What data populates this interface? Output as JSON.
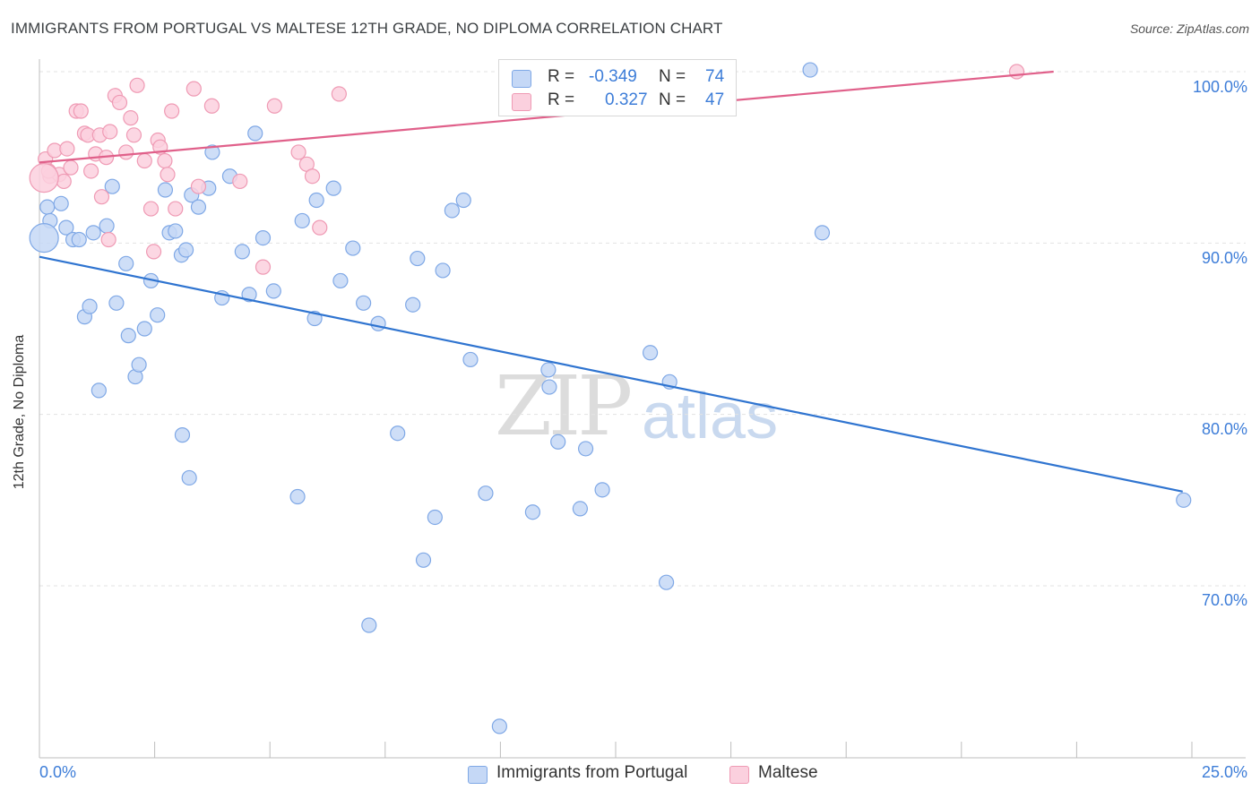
{
  "title": "IMMIGRANTS FROM PORTUGAL VS MALTESE 12TH GRADE, NO DIPLOMA CORRELATION CHART",
  "source": "Source: ZipAtlas.com",
  "watermark": {
    "zip": "ZIP",
    "atlas": "atlas"
  },
  "legend": {
    "r_label": "R =",
    "n_label": "N =",
    "rows": [
      {
        "series": "Immigrants from Portugal",
        "r": "-0.349",
        "n": "74",
        "color": "#7fa8e6",
        "fill": "#c5d8f6"
      },
      {
        "series": "Maltese",
        "r": "0.327",
        "n": "47",
        "color": "#ef9ab4",
        "fill": "#fbd0de"
      }
    ]
  },
  "colors": {
    "blue": "#3d7dd8",
    "blue_line": "#2f74d0",
    "pink_line": "#e0608a",
    "blue_fill": "#c5d8f6",
    "pink_fill": "#fbd0de"
  },
  "chart_data": {
    "type": "scatter",
    "title": "IMMIGRANTS FROM PORTUGAL VS MALTESE 12TH GRADE, NO DIPLOMA CORRELATION CHART",
    "xlabel": "",
    "ylabel": "12th Grade, No Diploma",
    "xlim": [
      0,
      25
    ],
    "ylim": [
      61.5,
      102.5
    ],
    "x_tick_labels": [
      "0.0%",
      "25.0%"
    ],
    "y_ticks": [
      70,
      80,
      90,
      100
    ],
    "y_tick_labels": [
      "70.0%",
      "80.0%",
      "90.0%",
      "100.0%"
    ],
    "grid": true,
    "legend_position": "bottom",
    "series": [
      {
        "name": "Immigrants from Portugal",
        "color": "#3d7dd8",
        "points": [
          [
            0.17,
            92.1
          ],
          [
            0.23,
            91.3
          ],
          [
            0.47,
            92.3
          ],
          [
            0.58,
            90.9
          ],
          [
            0.73,
            90.2
          ],
          [
            0.86,
            90.2
          ],
          [
            0.98,
            85.7
          ],
          [
            1.09,
            86.3
          ],
          [
            1.17,
            90.6
          ],
          [
            1.46,
            91.0
          ],
          [
            1.58,
            93.3
          ],
          [
            1.67,
            86.5
          ],
          [
            1.88,
            88.8
          ],
          [
            1.93,
            84.6
          ],
          [
            2.08,
            82.2
          ],
          [
            2.16,
            82.9
          ],
          [
            2.28,
            85.0
          ],
          [
            2.42,
            87.8
          ],
          [
            2.56,
            85.8
          ],
          [
            2.73,
            93.1
          ],
          [
            2.82,
            90.6
          ],
          [
            2.95,
            90.7
          ],
          [
            3.08,
            89.3
          ],
          [
            3.18,
            89.6
          ],
          [
            3.3,
            92.8
          ],
          [
            3.45,
            92.1
          ],
          [
            3.67,
            93.2
          ],
          [
            3.75,
            95.3
          ],
          [
            3.96,
            86.8
          ],
          [
            4.13,
            93.9
          ],
          [
            4.4,
            89.5
          ],
          [
            4.55,
            87.0
          ],
          [
            4.68,
            96.4
          ],
          [
            4.85,
            90.3
          ],
          [
            5.08,
            87.2
          ],
          [
            5.7,
            91.3
          ],
          [
            5.97,
            85.6
          ],
          [
            6.01,
            92.5
          ],
          [
            6.38,
            93.2
          ],
          [
            6.53,
            87.8
          ],
          [
            6.8,
            89.7
          ],
          [
            7.03,
            86.5
          ],
          [
            7.35,
            85.3
          ],
          [
            7.77,
            78.9
          ],
          [
            8.1,
            86.4
          ],
          [
            8.2,
            89.1
          ],
          [
            8.33,
            71.5
          ],
          [
            8.58,
            74.0
          ],
          [
            8.75,
            88.4
          ],
          [
            8.95,
            91.9
          ],
          [
            9.2,
            92.5
          ],
          [
            9.35,
            83.2
          ],
          [
            9.68,
            75.4
          ],
          [
            1.29,
            81.4
          ],
          [
            3.1,
            78.8
          ],
          [
            3.25,
            76.3
          ],
          [
            5.6,
            75.2
          ],
          [
            10.7,
            74.3
          ],
          [
            11.04,
            82.6
          ],
          [
            11.06,
            81.6
          ],
          [
            11.25,
            78.4
          ],
          [
            11.73,
            74.5
          ],
          [
            11.85,
            78.0
          ],
          [
            12.21,
            75.6
          ],
          [
            13.25,
            83.6
          ],
          [
            13.6,
            70.2
          ],
          [
            13.67,
            81.9
          ],
          [
            16.72,
            100.1
          ],
          [
            16.98,
            90.6
          ],
          [
            24.82,
            75.0
          ],
          [
            9.98,
            61.8
          ],
          [
            7.15,
            67.7
          ],
          [
            13.9,
            100.1
          ],
          [
            0.1,
            90.3
          ]
        ],
        "trend": {
          "x": [
            0,
            24.8
          ],
          "y": [
            89.2,
            75.5
          ]
        }
      },
      {
        "name": "Maltese",
        "color": "#ef9ab4",
        "points": [
          [
            0.13,
            94.9
          ],
          [
            0.23,
            93.9
          ],
          [
            0.33,
            95.4
          ],
          [
            0.43,
            94.0
          ],
          [
            0.53,
            93.6
          ],
          [
            0.6,
            95.5
          ],
          [
            0.68,
            94.4
          ],
          [
            0.8,
            97.7
          ],
          [
            0.9,
            97.7
          ],
          [
            0.98,
            96.4
          ],
          [
            1.05,
            96.3
          ],
          [
            1.12,
            94.2
          ],
          [
            1.22,
            95.2
          ],
          [
            1.31,
            96.3
          ],
          [
            1.35,
            92.7
          ],
          [
            1.45,
            95.0
          ],
          [
            1.53,
            96.5
          ],
          [
            1.64,
            98.6
          ],
          [
            1.74,
            98.2
          ],
          [
            1.88,
            95.3
          ],
          [
            1.98,
            97.3
          ],
          [
            2.05,
            96.3
          ],
          [
            2.12,
            99.2
          ],
          [
            2.28,
            94.8
          ],
          [
            2.42,
            92.0
          ],
          [
            2.48,
            89.5
          ],
          [
            2.57,
            96.0
          ],
          [
            2.62,
            95.6
          ],
          [
            2.72,
            94.8
          ],
          [
            2.78,
            94.0
          ],
          [
            2.87,
            97.7
          ],
          [
            2.95,
            92.0
          ],
          [
            3.35,
            99.0
          ],
          [
            3.45,
            93.3
          ],
          [
            3.74,
            98.0
          ],
          [
            4.35,
            93.6
          ],
          [
            4.85,
            88.6
          ],
          [
            5.1,
            98.0
          ],
          [
            5.62,
            95.3
          ],
          [
            5.8,
            94.6
          ],
          [
            5.92,
            93.9
          ],
          [
            6.08,
            90.9
          ],
          [
            6.5,
            98.7
          ],
          [
            1.5,
            90.2
          ],
          [
            0.2,
            94.2
          ],
          [
            21.2,
            100.0
          ],
          [
            0.1,
            93.8
          ]
        ],
        "trend": {
          "x": [
            0,
            22.0
          ],
          "y": [
            94.7,
            100.0
          ]
        }
      }
    ]
  },
  "bottom_legend": [
    "Immigrants from Portugal",
    "Maltese"
  ]
}
